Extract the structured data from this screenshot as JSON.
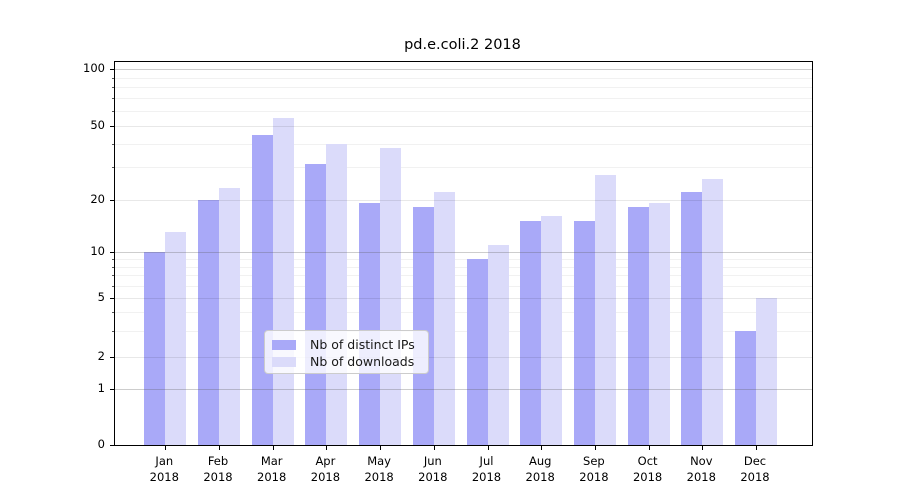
{
  "title": "pd.e.coli.2 2018",
  "chart_data": {
    "type": "bar",
    "title": "pd.e.coli.2 2018",
    "categories": [
      "Jan 2018",
      "Feb 2018",
      "Mar 2018",
      "Apr 2018",
      "May 2018",
      "Jun 2018",
      "Jul 2018",
      "Aug 2018",
      "Sep 2018",
      "Oct 2018",
      "Nov 2018",
      "Dec 2018"
    ],
    "series": [
      {
        "name": "Nb of distinct IPs",
        "color": "#a9a9f8",
        "values": [
          10,
          20,
          45,
          31,
          19,
          18,
          9,
          15,
          15,
          18,
          22,
          3
        ]
      },
      {
        "name": "Nb of downloads",
        "color": "#dbdbfa",
        "values": [
          13,
          23,
          55,
          40,
          38,
          22,
          11,
          16,
          27,
          19,
          26,
          5
        ]
      }
    ],
    "yscale": "symlog",
    "ylim": [
      0,
      110
    ],
    "yticks": [
      0,
      1,
      2,
      5,
      10,
      20,
      50,
      100
    ],
    "yticklabels": [
      "0",
      "1",
      "2",
      "5",
      "10",
      "20",
      "50",
      "100"
    ],
    "minor_yticks": [
      3,
      4,
      6,
      7,
      8,
      9,
      30,
      40,
      60,
      70,
      80,
      90
    ],
    "grid": true,
    "legend_position": "lower center",
    "background": "#ffffff",
    "text_color": "#000000"
  }
}
